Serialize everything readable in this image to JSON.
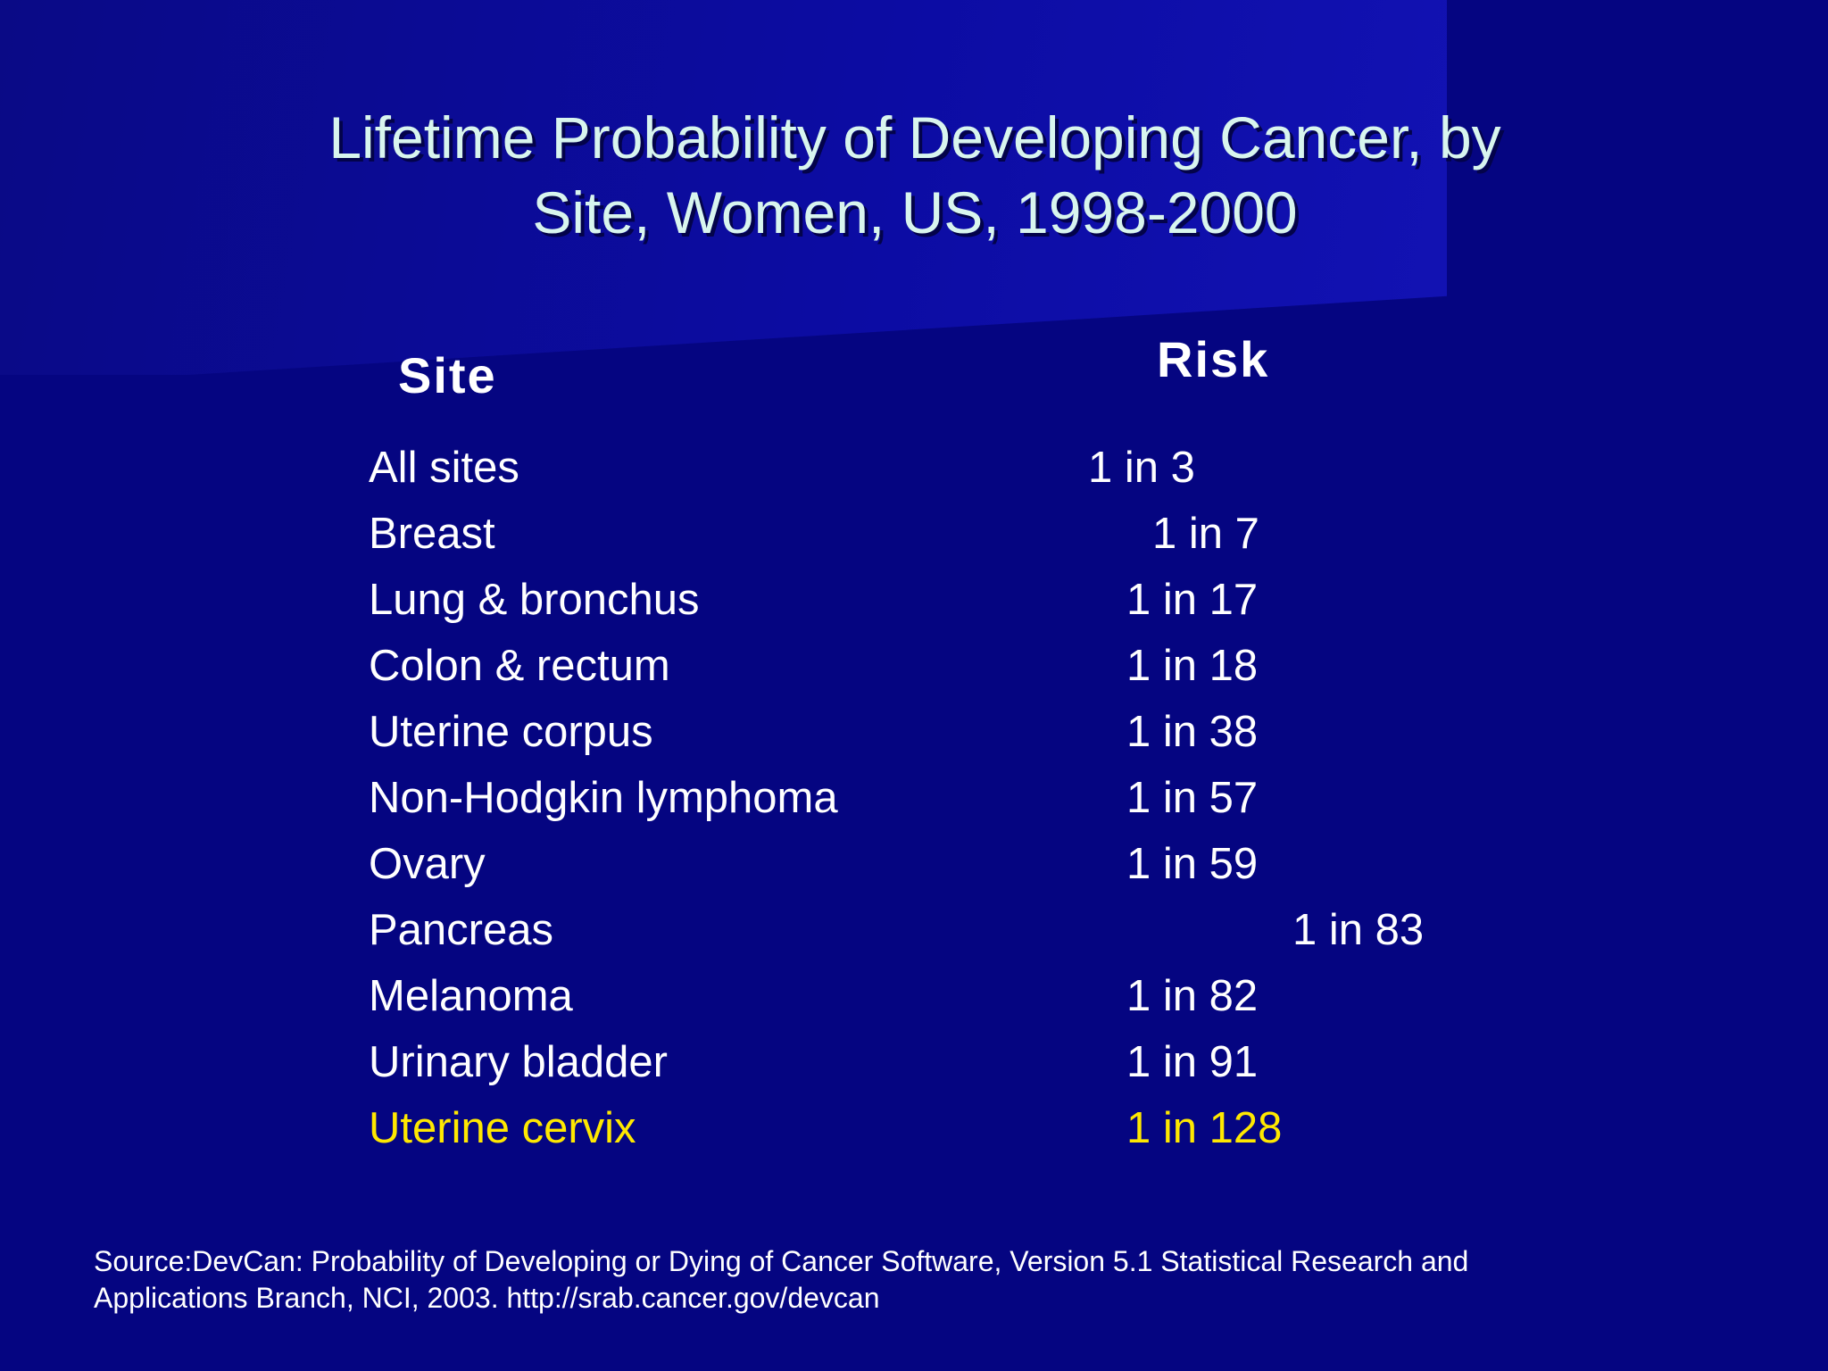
{
  "title": {
    "line1": "Lifetime Probability of Developing Cancer, by",
    "line2": "Site, Women, US, 1998-2000"
  },
  "table": {
    "headers": {
      "site": "Site",
      "risk": "Risk"
    },
    "rows": [
      {
        "site": "All sites",
        "risk": "1 in 3"
      },
      {
        "site": "Breast",
        "risk": "1 in 7"
      },
      {
        "site": "Lung & bronchus",
        "risk": "1 in 17"
      },
      {
        "site": "Colon & rectum",
        "risk": "1 in 18"
      },
      {
        "site": "Uterine corpus",
        "risk": "1 in 38"
      },
      {
        "site": "Non-Hodgkin lymphoma",
        "risk": "1 in 57"
      },
      {
        "site": "Ovary",
        "risk": "1 in 59"
      },
      {
        "site": "Pancreas",
        "risk": "1 in 83"
      },
      {
        "site": "Melanoma",
        "risk": "1 in 82"
      },
      {
        "site": "Urinary bladder",
        "risk": "1 in 91"
      },
      {
        "site": "Uterine cervix",
        "risk": "1 in 128"
      }
    ]
  },
  "source": {
    "line1": "Source:DevCan: Probability of Developing or Dying of Cancer Software, Version 5.1 Statistical Research and",
    "line2": "Applications Branch, NCI, 2003. http://srab.cancer.gov/devcan"
  },
  "colors": {
    "background": "#050581",
    "title_text": "#d8f5ee",
    "body_text": "#ffffff",
    "highlight": "#ffe800"
  }
}
